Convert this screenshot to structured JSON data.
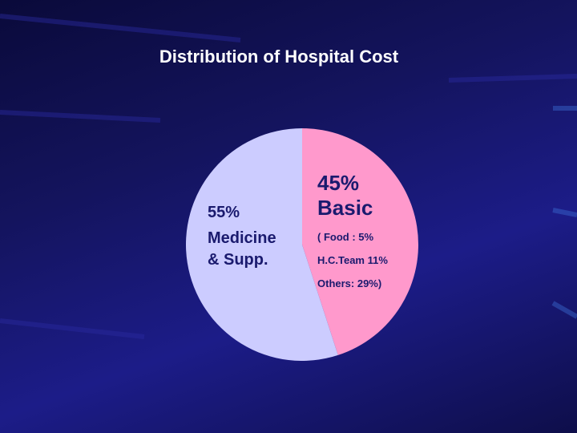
{
  "chart_data": {
    "type": "pie",
    "title": "Distribution of Hospital Cost",
    "categories": [
      "Basic",
      "Medicine & Supp."
    ],
    "values": [
      45,
      55
    ],
    "value_labels": [
      "45%",
      "55%"
    ],
    "colors": [
      "#ff99cc",
      "#ccccff"
    ],
    "annotations": [
      "( Food : 5%",
      "H.C.Team 11%",
      "Others: 29%)"
    ]
  }
}
